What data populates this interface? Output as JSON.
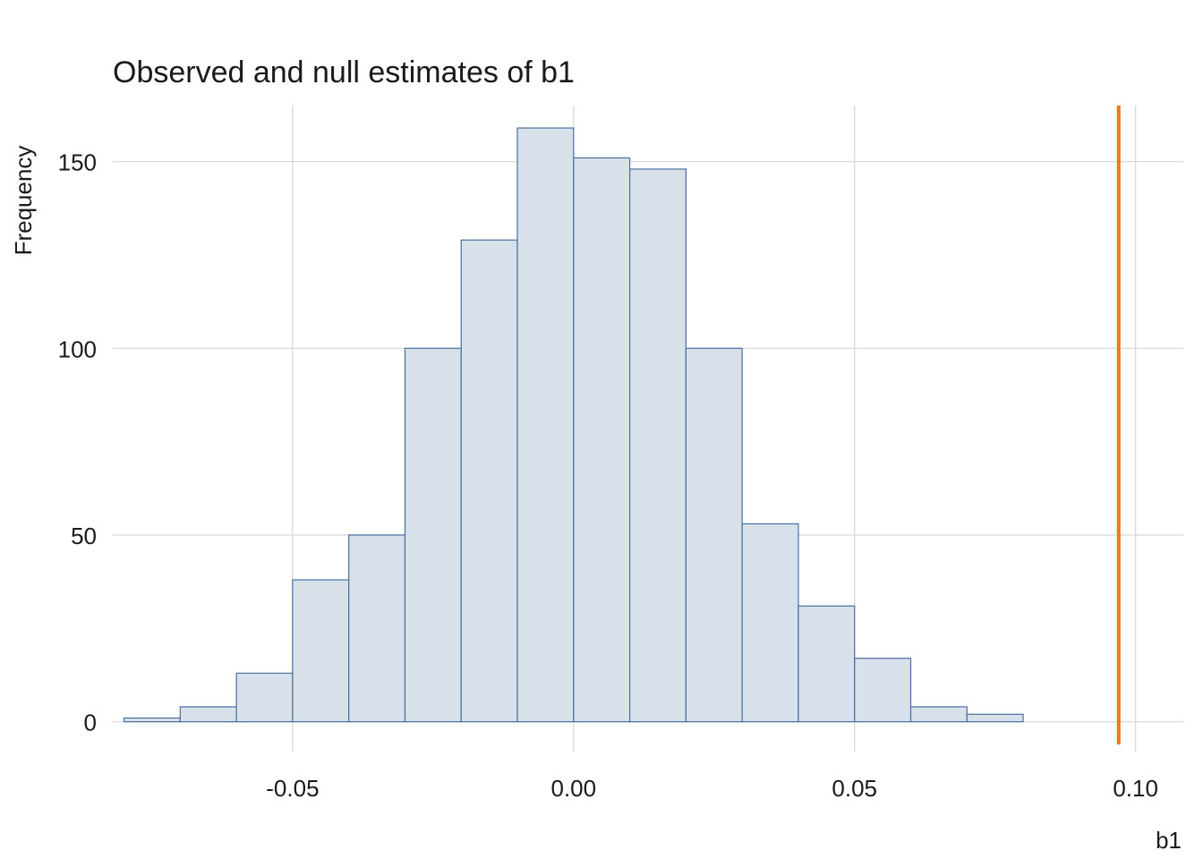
{
  "chart_data": {
    "type": "bar",
    "title": "Observed and null estimates of b1",
    "xlabel": "b1",
    "ylabel": "Frequency",
    "bin_edges": [
      -0.08,
      -0.07,
      -0.06,
      -0.05,
      -0.04,
      -0.03,
      -0.02,
      -0.01,
      0.0,
      0.01,
      0.02,
      0.03,
      0.04,
      0.05,
      0.06,
      0.07,
      0.08
    ],
    "counts": [
      1,
      4,
      13,
      38,
      50,
      100,
      129,
      159,
      151,
      148,
      100,
      53,
      31,
      17,
      4,
      2
    ],
    "xlim": [
      -0.082,
      0.1085
    ],
    "ylim": [
      -8,
      165
    ],
    "x_ticks": [
      -0.05,
      0.0,
      0.05,
      0.1
    ],
    "x_tick_labels": [
      "-0.05",
      "0.00",
      "0.05",
      "0.10"
    ],
    "y_ticks": [
      0,
      50,
      100,
      150
    ],
    "y_tick_labels": [
      "0",
      "50",
      "100",
      "150"
    ],
    "observed_value": 0.097,
    "grid": true,
    "colors": {
      "bar_fill": "#d8e0ea",
      "bar_stroke": "#4a6fa0",
      "observed_line": "#e87722",
      "grid": "#d9d9d9"
    }
  }
}
